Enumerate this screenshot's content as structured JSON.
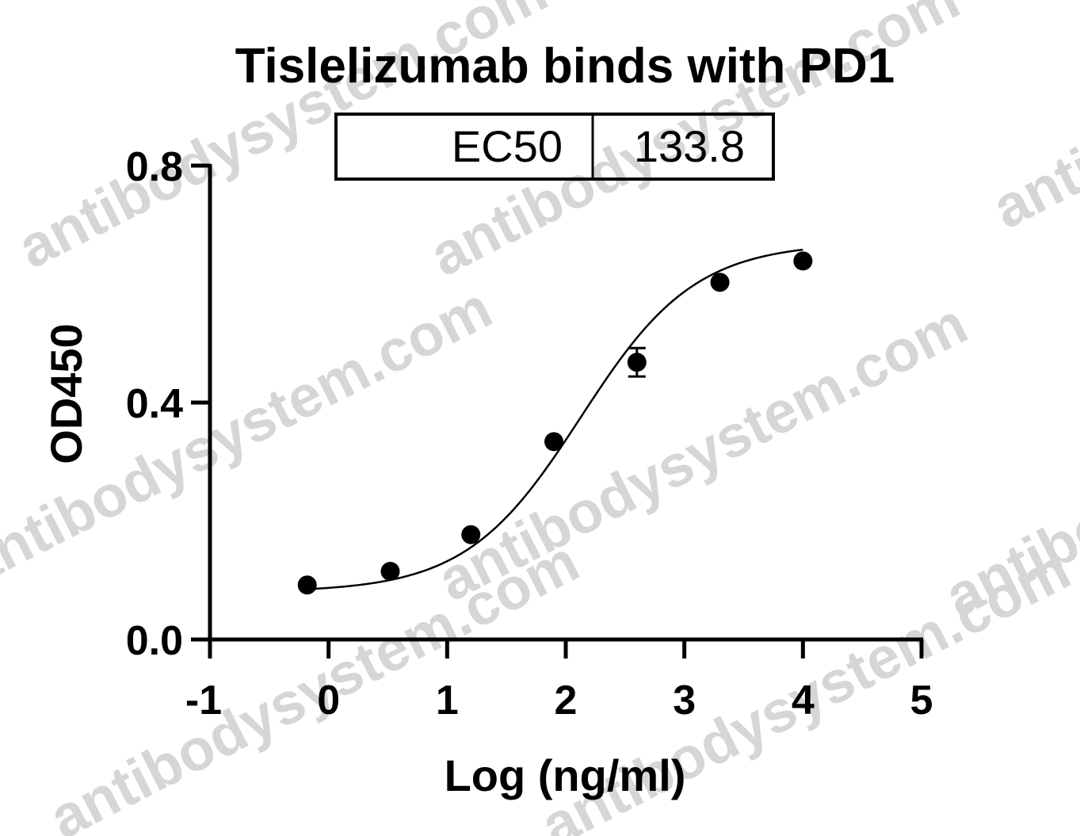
{
  "watermark": "antibodysystem.com",
  "chart_data": {
    "type": "scatter",
    "title": "Tislelizumab binds with PD1",
    "xlabel": "Log (ng/ml)",
    "ylabel": "OD450",
    "xlim": [
      -1,
      5
    ],
    "ylim": [
      0.0,
      0.8
    ],
    "x_ticks": [
      -1,
      0,
      1,
      2,
      3,
      4,
      5
    ],
    "y_ticks": [
      0.0,
      0.4,
      0.8
    ],
    "x_tick_labels": [
      "-1",
      "0",
      "1",
      "2",
      "3",
      "4",
      "5"
    ],
    "y_tick_labels": [
      "0.0",
      "0.4",
      "0.8"
    ],
    "grid": false,
    "legend": "none",
    "marker_color": "#000000",
    "series": [
      {
        "x": [
          -0.18,
          0.52,
          1.2,
          1.9,
          2.6,
          3.3,
          4.0
        ],
        "y": [
          0.092,
          0.115,
          0.177,
          0.334,
          0.468,
          0.603,
          0.639
        ],
        "error": [
          0.0,
          0.0,
          0.0,
          0.0,
          0.024,
          0.0,
          0.0
        ]
      }
    ],
    "fit_curve": {
      "model": "four-parameter logistic",
      "bottom": 0.08,
      "top": 0.67,
      "log_ec50": 2.126,
      "hill_slope": 0.9
    },
    "stats_table": {
      "label": "EC50",
      "value": "133.8"
    }
  }
}
